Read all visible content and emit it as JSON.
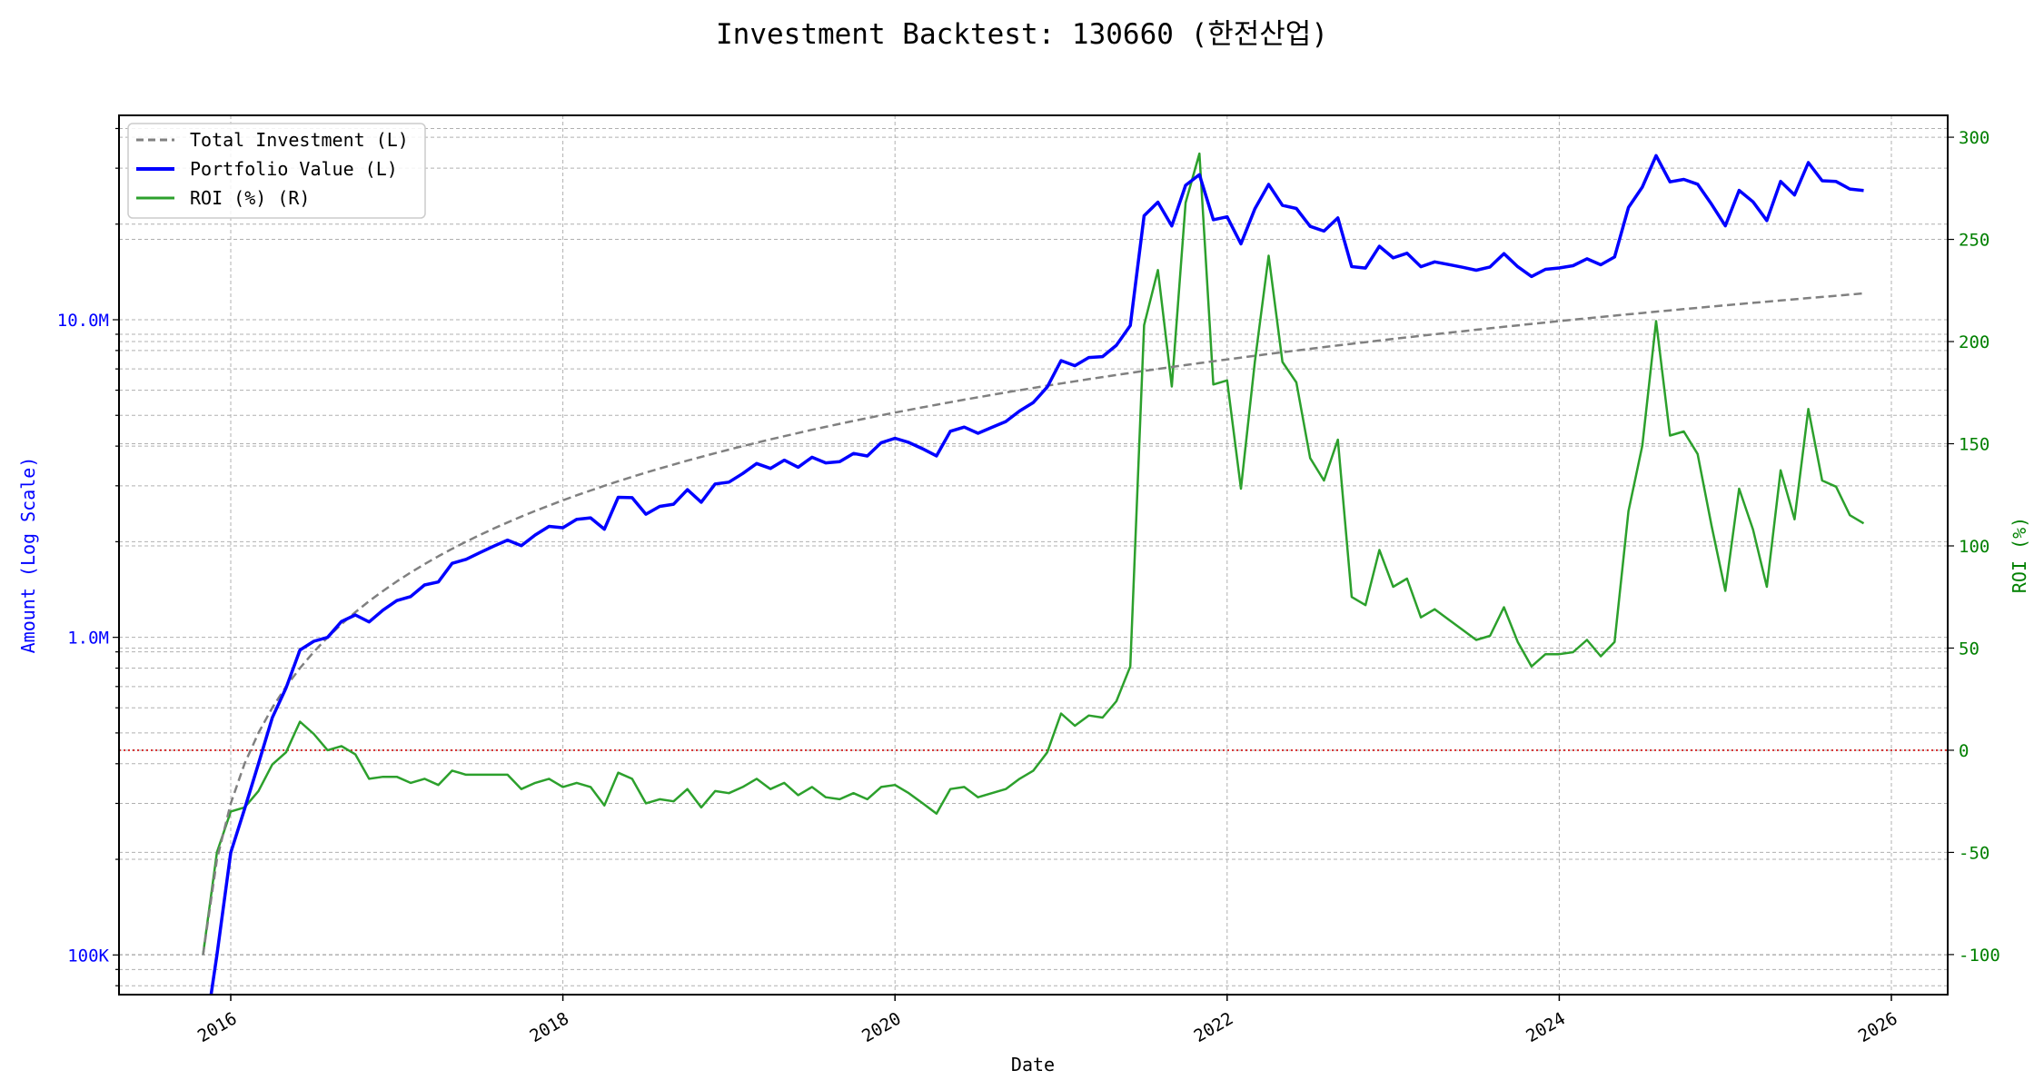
{
  "chart_data": {
    "type": "line",
    "title": "Investment Backtest: 130660 (한전산업)",
    "xlabel": "Date",
    "ylabel_left": "Amount (Log Scale)",
    "ylabel_right": "ROI (%)",
    "x_start": "2015-11",
    "x_frequency": "monthly",
    "x_ticks": [
      "2016",
      "2018",
      "2020",
      "2022",
      "2024",
      "2026"
    ],
    "y_left_scale": "log",
    "y_left_ticks": [
      {
        "value": 100000,
        "label": "100K"
      },
      {
        "value": 1000000,
        "label": "1.0M"
      },
      {
        "value": 10000000,
        "label": "10.0M"
      }
    ],
    "y_left_range": [
      75000,
      44000000
    ],
    "y_right_ticks": [
      -100,
      -50,
      0,
      50,
      100,
      150,
      200,
      250,
      300
    ],
    "y_right_range": [
      -119.6,
      310.7
    ],
    "grid": true,
    "legend_position": "top-left",
    "reference_line": {
      "axis": "right",
      "value": 0,
      "color": "#d62728"
    },
    "series": [
      {
        "name": "Total Investment (L)",
        "axis": "left",
        "style": "dashed",
        "color": "#808080",
        "unit": "M",
        "values": [
          0.1,
          0.2,
          0.3,
          0.4,
          0.5,
          0.6,
          0.7,
          0.8,
          0.9,
          1.0,
          1.1,
          1.2,
          1.3,
          1.4,
          1.5,
          1.6,
          1.7,
          1.8,
          1.9,
          2.0,
          2.1,
          2.2,
          2.3,
          2.4,
          2.5,
          2.6,
          2.7,
          2.8,
          2.9,
          3.0,
          3.1,
          3.2,
          3.3,
          3.4,
          3.5,
          3.6,
          3.7,
          3.8,
          3.9,
          4.0,
          4.1,
          4.2,
          4.3,
          4.4,
          4.5,
          4.6,
          4.7,
          4.8,
          4.9,
          5.0,
          5.1,
          5.2,
          5.3,
          5.4,
          5.5,
          5.6,
          5.7,
          5.8,
          5.9,
          6.0,
          6.1,
          6.2,
          6.3,
          6.4,
          6.5,
          6.6,
          6.7,
          6.8,
          6.9,
          7.0,
          7.1,
          7.2,
          7.3,
          7.4,
          7.5,
          7.6,
          7.7,
          7.8,
          7.9,
          8.0,
          8.1,
          8.2,
          8.3,
          8.4,
          8.5,
          8.6,
          8.7,
          8.8,
          8.9,
          9.0,
          9.1,
          9.2,
          9.3,
          9.4,
          9.5,
          9.6,
          9.7,
          9.8,
          9.9,
          10.0,
          10.1,
          10.2,
          10.3,
          10.4,
          10.5,
          10.6,
          10.7,
          10.8,
          10.9,
          11.0,
          11.1,
          11.2,
          11.3,
          11.4,
          11.5,
          11.6,
          11.7,
          11.8,
          11.9,
          12.0,
          12.1
        ]
      },
      {
        "name": "Portfolio Value (L)",
        "axis": "left",
        "style": "solid",
        "color": "#0000ff",
        "unit": "M",
        "values": [
          0,
          0.1,
          0.21,
          0.288,
          0.4,
          0.558,
          0.693,
          0.912,
          0.972,
          1.0,
          1.122,
          1.176,
          1.118,
          1.218,
          1.305,
          1.344,
          1.462,
          1.494,
          1.71,
          1.76,
          1.848,
          1.936,
          2.024,
          1.944,
          2.1,
          2.236,
          2.214,
          2.352,
          2.378,
          2.19,
          2.759,
          2.752,
          2.442,
          2.584,
          2.625,
          2.916,
          2.664,
          3.04,
          3.081,
          3.28,
          3.526,
          3.402,
          3.612,
          3.432,
          3.69,
          3.542,
          3.572,
          3.792,
          3.724,
          4.1,
          4.233,
          4.108,
          3.922,
          3.726,
          4.455,
          4.592,
          4.389,
          4.582,
          4.779,
          5.16,
          5.49,
          6.138,
          7.434,
          7.168,
          7.605,
          7.656,
          8.308,
          9.588,
          21.25,
          23.45,
          19.74,
          26.5,
          28.62,
          20.65,
          21.08,
          17.33,
          22.33,
          26.68,
          22.91,
          22.4,
          19.68,
          19.02,
          20.92,
          14.7,
          14.54,
          17.03,
          15.66,
          16.19,
          14.69,
          15.21,
          14.92,
          14.63,
          14.32,
          14.66,
          16.15,
          14.69,
          13.68,
          14.41,
          14.55,
          14.8,
          15.55,
          14.89,
          15.76,
          22.57,
          26.15,
          32.86,
          27.18,
          27.65,
          26.71,
          23.1,
          19.76,
          25.54,
          23.5,
          20.52,
          27.26,
          24.71,
          31.24,
          27.38,
          27.25,
          25.8,
          25.53
        ]
      },
      {
        "name": "ROI (%) (R)",
        "axis": "right",
        "style": "solid",
        "color": "#2ca02c",
        "unit": "%",
        "values": [
          -100,
          -50,
          -30,
          -28,
          -20,
          -7,
          -1,
          14,
          8,
          0,
          2,
          -2,
          -14,
          -13,
          -13,
          -16,
          -14,
          -17,
          -10,
          -12,
          -12,
          -12,
          -12,
          -19,
          -16,
          -14,
          -18,
          -16,
          -18,
          -27,
          -11,
          -14,
          -26,
          -24,
          -25,
          -19,
          -28,
          -20,
          -21,
          -18,
          -14,
          -19,
          -16,
          -22,
          -18,
          -23,
          -24,
          -21,
          -24,
          -18,
          -17,
          -21,
          -26,
          -31,
          -19,
          -18,
          -23,
          -21,
          -19,
          -14,
          -10,
          -1,
          18,
          12,
          17,
          16,
          24,
          41,
          208,
          235,
          178,
          268,
          292,
          179,
          181,
          128,
          190,
          242,
          190,
          180,
          143,
          132,
          152,
          75,
          71,
          98,
          80,
          84,
          65,
          69,
          64,
          59,
          54,
          56,
          70,
          53,
          41,
          47,
          47,
          48,
          54,
          46,
          53,
          117,
          149,
          210,
          154,
          156,
          145,
          110,
          78,
          128,
          108,
          80,
          137,
          113,
          167,
          132,
          129,
          115,
          111
        ]
      }
    ]
  }
}
